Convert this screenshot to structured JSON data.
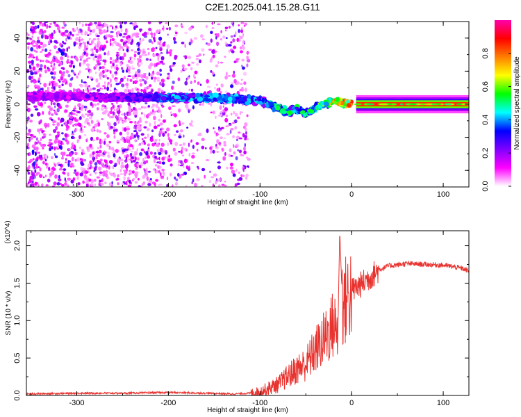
{
  "title": "C2E1.2025.041.15.28.G11",
  "chart_data": [
    {
      "type": "heatmap",
      "xlabel": "Height of straight line (km)",
      "ylabel": "Frequency (Hz)",
      "xlim": [
        -355,
        128
      ],
      "ylim": [
        -50,
        50
      ],
      "xticks": [
        -300,
        -200,
        -100,
        0,
        100
      ],
      "xtick_labels": [
        "-300",
        "-200",
        "-100",
        "0",
        "100"
      ],
      "yticks": [
        -40,
        -20,
        0,
        20,
        40
      ],
      "ytick_labels": [
        "-40",
        "-20",
        "0",
        "20",
        "40"
      ],
      "colorbar": {
        "label": "Normalized spectral amplitude",
        "range": [
          0,
          1
        ],
        "ticks": [
          0.0,
          0.2,
          0.4,
          0.6,
          0.8
        ],
        "tick_labels": [
          "0.0",
          "0.2",
          "0.4",
          "0.6",
          "0.8"
        ],
        "colormap": [
          "#ffffff",
          "#ff00ff",
          "#7f00ff",
          "#0000ff",
          "#00ffff",
          "#00ff00",
          "#ffff00",
          "#ff7f00",
          "#ff0000",
          "#ff00aa"
        ]
      },
      "ridge": {
        "x": [
          -355,
          -300,
          -250,
          -200,
          -150,
          -120,
          -100,
          -80,
          -70,
          -60,
          -50,
          -40,
          -30,
          -20,
          -10,
          0,
          128
        ],
        "frequency": [
          5,
          5,
          4,
          4,
          4,
          3,
          2,
          -2,
          -5,
          -3,
          -6,
          -2,
          0,
          2,
          1,
          0,
          0
        ],
        "amplitude": [
          0.22,
          0.24,
          0.26,
          0.42,
          0.42,
          0.45,
          0.42,
          0.55,
          0.5,
          0.52,
          0.5,
          0.55,
          0.62,
          0.72,
          0.78,
          0.8,
          0.8
        ]
      },
      "grid": false
    },
    {
      "type": "line",
      "xlabel": "Height of straight line (km)",
      "ylabel": "SNR (10 * v/v)",
      "y_multiplier": "(x10^4)",
      "xlim": [
        -355,
        128
      ],
      "ylim": [
        0,
        2.2
      ],
      "xticks": [
        -300,
        -200,
        -100,
        0,
        100
      ],
      "xtick_labels": [
        "-300",
        "-200",
        "-100",
        "0",
        "100"
      ],
      "yticks": [
        0.0,
        0.5,
        1.0,
        1.5,
        2.0
      ],
      "ytick_labels": [
        "0.0",
        "0.5",
        "1.0",
        "1.5",
        "2.0"
      ],
      "color": "#e8322e",
      "series": [
        {
          "x": [
            -355,
            -300,
            -250,
            -200,
            -160,
            -130,
            -110,
            -100,
            -90,
            -80,
            -70,
            -60,
            -50,
            -40,
            -30,
            -20,
            -15,
            -13,
            -10,
            -5,
            0,
            10,
            20,
            30,
            40,
            60,
            80,
            100,
            110,
            120,
            128
          ],
          "values": [
            0.02,
            0.03,
            0.03,
            0.04,
            0.03,
            0.02,
            0.03,
            0.05,
            0.1,
            0.15,
            0.25,
            0.35,
            0.42,
            0.6,
            0.75,
            0.95,
            0.85,
            2.2,
            1.2,
            1.3,
            1.4,
            1.48,
            1.58,
            1.68,
            1.73,
            1.76,
            1.75,
            1.74,
            1.72,
            1.7,
            1.66
          ]
        }
      ],
      "grid": false
    }
  ]
}
